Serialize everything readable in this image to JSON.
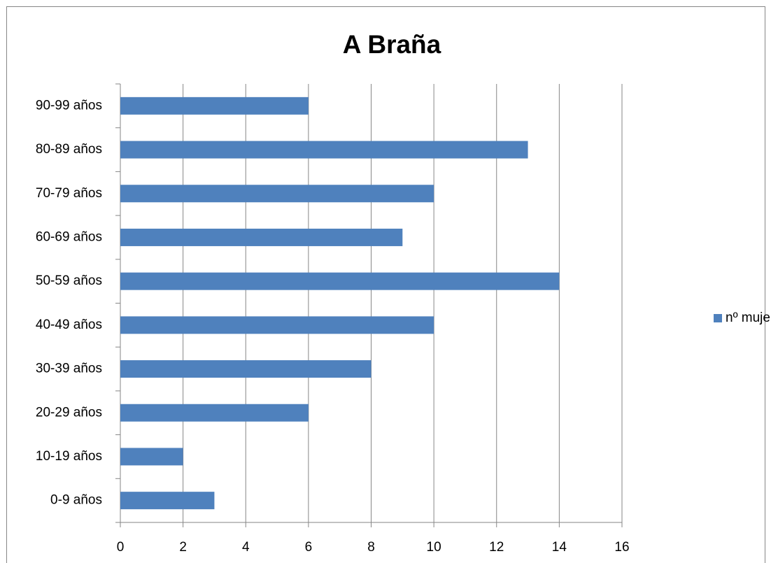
{
  "chart_data": {
    "type": "bar",
    "orientation": "horizontal",
    "title": "A Braña",
    "categories": [
      "0-9 años",
      "10-19 años",
      "20-29 años",
      "30-39 años",
      "40-49 años",
      "50-59 años",
      "60-69 años",
      "70-79 años",
      "80-89 años",
      "90-99 años"
    ],
    "series": [
      {
        "name": "nº mujeres",
        "color": "#4f81bd",
        "values": [
          3,
          2,
          6,
          8,
          10,
          14,
          9,
          10,
          13,
          6
        ]
      }
    ],
    "xlim": [
      0,
      16
    ],
    "xticks": [
      0,
      2,
      4,
      6,
      8,
      10,
      12,
      14,
      16
    ],
    "grid": true,
    "legend": "right"
  }
}
